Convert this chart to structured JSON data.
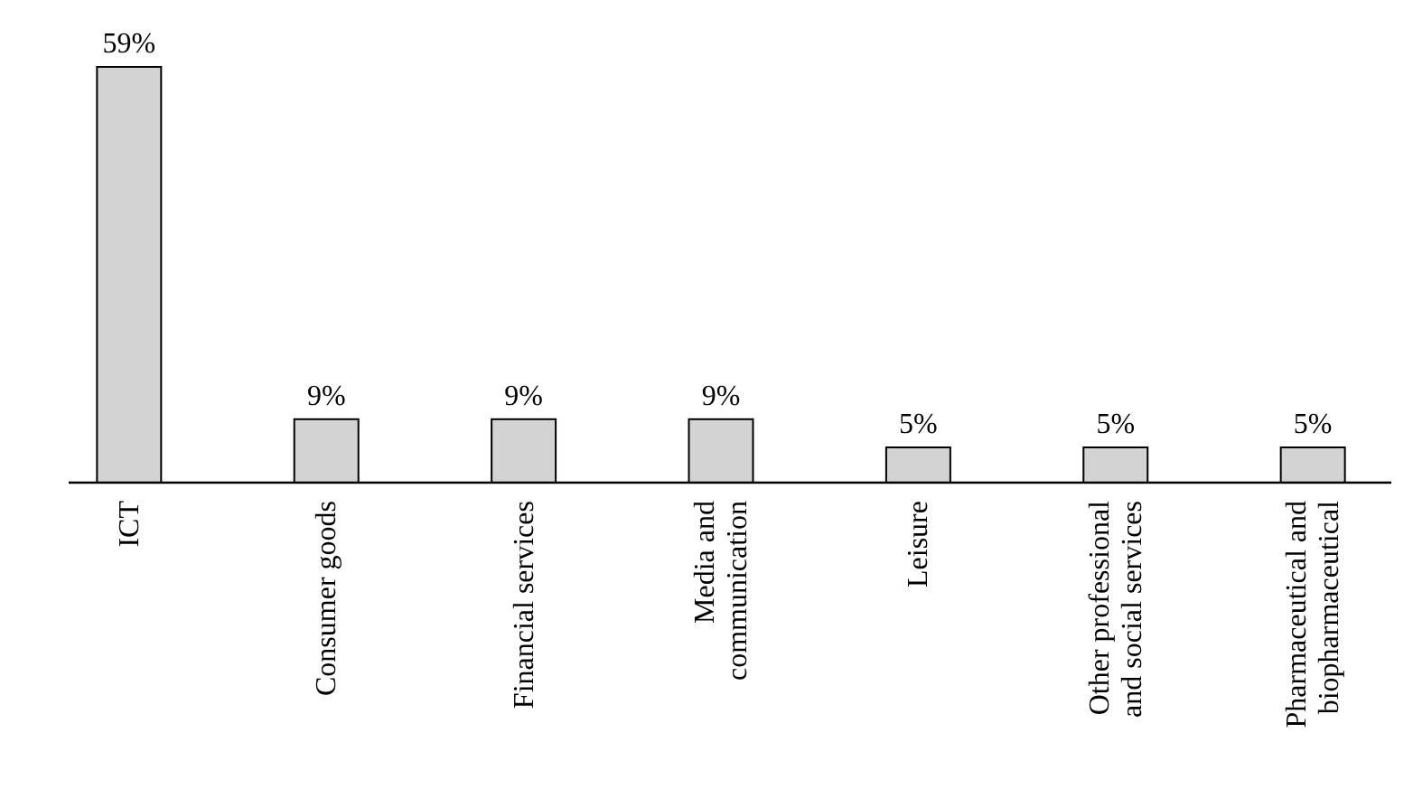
{
  "chart_data": {
    "type": "bar",
    "categories": [
      "ICT",
      "Consumer goods",
      "Financial services",
      "Media and communication",
      "Leisure",
      "Other professional and social services",
      "Pharmaceutical and biopharmaceutical"
    ],
    "values": [
      59,
      9,
      9,
      9,
      5,
      5,
      5
    ],
    "value_labels": [
      "59%",
      "9%",
      "9%",
      "9%",
      "5%",
      "5%",
      "5%"
    ],
    "color": "#d3d3d3"
  }
}
